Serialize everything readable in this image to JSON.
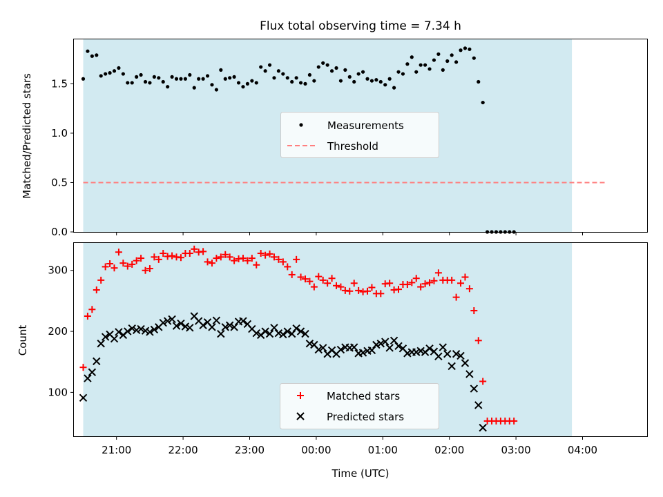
{
  "title": "Flux total observing time = 7.34 h",
  "colors": {
    "observing_window": "#add8e6",
    "measurements": "#000000",
    "threshold": "#ff7f7f",
    "matched": "#ff0000",
    "predicted": "#000000"
  },
  "chart_data": [
    {
      "type": "scatter",
      "ylabel": "Matched/Predicted stars",
      "ylim": [
        0,
        1.95
      ],
      "yticks": [
        0.0,
        0.5,
        1.0,
        1.5
      ],
      "ytick_labels": [
        "0.0",
        "0.5",
        "1.0",
        "1.5"
      ],
      "xlim": [
        -3.64,
        4.97
      ],
      "xticks": [
        -3,
        -2,
        -1,
        0,
        1,
        2,
        3,
        4
      ],
      "show_xtick_labels": false,
      "observing_window": [
        -3.5,
        3.84
      ],
      "threshold": {
        "x": [
          -3.5,
          4.35
        ],
        "y": 0.5
      },
      "legend": {
        "placement": "center",
        "items": [
          {
            "label": "Measurements",
            "marker": "dot"
          },
          {
            "label": "Threshold",
            "marker": "dashed-line"
          }
        ]
      },
      "series": [
        {
          "name": "Measurements",
          "x_start": -3.5,
          "x_step": 0.0667,
          "values": [
            1.55,
            1.83,
            1.78,
            1.79,
            1.58,
            1.6,
            1.61,
            1.63,
            1.66,
            1.6,
            1.51,
            1.51,
            1.57,
            1.59,
            1.52,
            1.51,
            1.57,
            1.56,
            1.52,
            1.47,
            1.57,
            1.55,
            1.55,
            1.55,
            1.59,
            1.46,
            1.55,
            1.55,
            1.58,
            1.49,
            1.44,
            1.64,
            1.55,
            1.56,
            1.57,
            1.51,
            1.47,
            1.5,
            1.53,
            1.51,
            1.67,
            1.63,
            1.69,
            1.56,
            1.63,
            1.6,
            1.56,
            1.52,
            1.56,
            1.51,
            1.5,
            1.59,
            1.53,
            1.67,
            1.71,
            1.69,
            1.63,
            1.66,
            1.53,
            1.64,
            1.57,
            1.52,
            1.6,
            1.62,
            1.55,
            1.53,
            1.54,
            1.52,
            1.49,
            1.55,
            1.46,
            1.62,
            1.6,
            1.7,
            1.77,
            1.62,
            1.69,
            1.69,
            1.65,
            1.74,
            1.8,
            1.64,
            1.73,
            1.79,
            1.72,
            1.84,
            1.86,
            1.85,
            1.76,
            1.52,
            1.31,
            0,
            0,
            0,
            0,
            0,
            0,
            0
          ]
        }
      ]
    },
    {
      "type": "scatter",
      "ylabel": "Count",
      "xlabel": "Time (UTC)",
      "ylim": [
        28,
        345
      ],
      "yticks": [
        100,
        200,
        300
      ],
      "ytick_labels": [
        "100",
        "200",
        "300"
      ],
      "xlim": [
        -3.64,
        4.97
      ],
      "xticks": [
        -3,
        -2,
        -1,
        0,
        1,
        2,
        3,
        4
      ],
      "xtick_labels": [
        "21:00",
        "22:00",
        "23:00",
        "00:00",
        "01:00",
        "02:00",
        "03:00",
        "04:00"
      ],
      "observing_window": [
        -3.5,
        3.84
      ],
      "legend": {
        "placement": "lower center",
        "items": [
          {
            "label": "Matched stars",
            "marker": "plus"
          },
          {
            "label": "Predicted stars",
            "marker": "x"
          }
        ]
      },
      "series": [
        {
          "name": "Matched stars",
          "x_start": -3.5,
          "x_step": 0.0667,
          "values": [
            141,
            225,
            236,
            268,
            284,
            306,
            311,
            304,
            330,
            312,
            307,
            310,
            316,
            320,
            300,
            303,
            322,
            318,
            328,
            323,
            324,
            322,
            321,
            328,
            328,
            335,
            330,
            331,
            314,
            312,
            320,
            322,
            326,
            322,
            316,
            319,
            320,
            316,
            320,
            309,
            328,
            325,
            327,
            322,
            318,
            314,
            306,
            293,
            318,
            289,
            286,
            282,
            273,
            290,
            284,
            279,
            287,
            275,
            273,
            267,
            266,
            279,
            267,
            265,
            266,
            272,
            262,
            262,
            278,
            279,
            268,
            269,
            277,
            277,
            280,
            287,
            273,
            278,
            280,
            283,
            296,
            284,
            284,
            284,
            256,
            279,
            289,
            270,
            234,
            185,
            118,
            53,
            53,
            53,
            53,
            53,
            53,
            53
          ]
        },
        {
          "name": "Predicted stars",
          "x_start": -3.5,
          "x_step": 0.0667,
          "values": [
            91,
            123,
            133,
            151,
            180,
            191,
            195,
            188,
            199,
            194,
            200,
            205,
            202,
            204,
            201,
            199,
            203,
            207,
            214,
            217,
            220,
            209,
            213,
            208,
            206,
            225,
            217,
            210,
            215,
            207,
            218,
            196,
            207,
            210,
            207,
            216,
            217,
            212,
            204,
            197,
            194,
            200,
            196,
            206,
            197,
            195,
            200,
            196,
            205,
            200,
            196,
            180,
            178,
            170,
            173,
            163,
            169,
            163,
            170,
            174,
            173,
            174,
            164,
            165,
            168,
            169,
            178,
            180,
            183,
            173,
            185,
            176,
            172,
            164,
            166,
            166,
            168,
            166,
            172,
            167,
            159,
            174,
            163,
            143,
            163,
            160,
            148,
            130,
            106,
            79,
            42,
            null,
            null,
            null,
            null,
            null,
            null,
            null
          ]
        }
      ]
    }
  ]
}
